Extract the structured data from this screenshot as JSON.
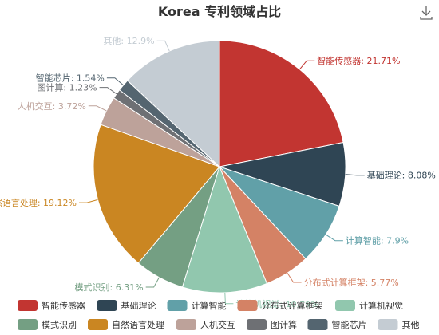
{
  "chart_data": {
    "type": "pie",
    "title": "Korea 专利领域占比",
    "slices": [
      {
        "name": "智能传感器",
        "value": 21.71,
        "color": "#c23531"
      },
      {
        "name": "基础理论",
        "value": 8.08,
        "color": "#2f4554"
      },
      {
        "name": "计算智能",
        "value": 7.9,
        "color": "#61a0a8"
      },
      {
        "name": "分布式计算框架",
        "value": 5.77,
        "color": "#d48265"
      },
      {
        "name": "计算机视觉",
        "value": 10.79,
        "color": "#91c7ae"
      },
      {
        "name": "模式识别",
        "value": 6.31,
        "color": "#749f83"
      },
      {
        "name": "自然语言处理",
        "value": 19.12,
        "color": "#ca8622"
      },
      {
        "name": "人机交互",
        "value": 3.72,
        "color": "#bda29a"
      },
      {
        "name": "图计算",
        "value": 1.23,
        "color": "#6e7074"
      },
      {
        "name": "智能芯片",
        "value": 1.54,
        "color": "#546570"
      },
      {
        "name": "其他",
        "value": 12.9,
        "color": "#c4ccd3"
      }
    ],
    "label_format": "{name}: {value}%",
    "legend_placement": "bottom"
  },
  "toolbox": {
    "download_icon": "download-icon"
  }
}
